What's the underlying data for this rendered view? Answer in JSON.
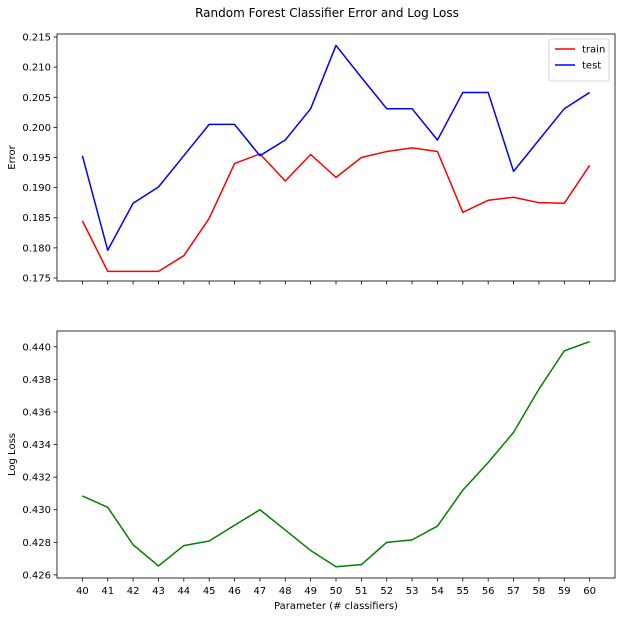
{
  "figure": {
    "title": "Random Forest Classifier Error and Log Loss"
  },
  "chart_data": [
    {
      "type": "line",
      "ylabel": "Error",
      "xlabel": "",
      "x": [
        40,
        41,
        42,
        43,
        44,
        45,
        46,
        47,
        48,
        49,
        50,
        51,
        52,
        53,
        54,
        55,
        56,
        57,
        58,
        59,
        60
      ],
      "ylim": [
        0.1745,
        0.2155
      ],
      "yticks": [
        0.175,
        0.18,
        0.185,
        0.19,
        0.195,
        0.2,
        0.205,
        0.21,
        0.215
      ],
      "ytick_labels": [
        "0.175",
        "0.180",
        "0.185",
        "0.190",
        "0.195",
        "0.200",
        "0.205",
        "0.210",
        "0.215"
      ],
      "show_xtick_labels": false,
      "grid": false,
      "legend": "top-right",
      "series": [
        {
          "name": "train",
          "color": "#ff0000",
          "values": [
            0.1845,
            0.1761,
            0.1761,
            0.1761,
            0.1787,
            0.1849,
            0.194,
            0.1956,
            0.1911,
            0.1955,
            0.1917,
            0.195,
            0.196,
            0.1966,
            0.196,
            0.1859,
            0.1879,
            0.1884,
            0.1875,
            0.1874,
            0.1937
          ]
        },
        {
          "name": "test",
          "color": "#0000ff",
          "values": [
            0.1953,
            0.1796,
            0.1874,
            0.1901,
            0.1953,
            0.2005,
            0.2005,
            0.1953,
            0.1979,
            0.2031,
            0.2136,
            0.2083,
            0.2031,
            0.2031,
            0.1979,
            0.2058,
            0.2058,
            0.1927,
            0.1979,
            0.2031,
            0.2058
          ]
        }
      ]
    },
    {
      "type": "line",
      "ylabel": "Log Loss",
      "xlabel": "Parameter (# classifiers)",
      "x": [
        40,
        41,
        42,
        43,
        44,
        45,
        46,
        47,
        48,
        49,
        50,
        51,
        52,
        53,
        54,
        55,
        56,
        57,
        58,
        59,
        60
      ],
      "ylim": [
        0.42581,
        0.44097
      ],
      "yticks": [
        0.426,
        0.428,
        0.43,
        0.432,
        0.434,
        0.436,
        0.438,
        0.44
      ],
      "ytick_labels": [
        "0.426",
        "0.428",
        "0.430",
        "0.432",
        "0.434",
        "0.436",
        "0.438",
        "0.440"
      ],
      "xtick_labels": [
        "40",
        "41",
        "42",
        "43",
        "44",
        "45",
        "46",
        "47",
        "48",
        "49",
        "50",
        "51",
        "52",
        "53",
        "54",
        "55",
        "56",
        "57",
        "58",
        "59",
        "60"
      ],
      "show_xtick_labels": true,
      "grid": false,
      "series": [
        {
          "color": "#008000",
          "values": [
            0.43085,
            0.43015,
            0.42785,
            0.42655,
            0.4278,
            0.42808,
            0.42905,
            0.43,
            0.42875,
            0.4275,
            0.4265,
            0.42663,
            0.428,
            0.42815,
            0.429,
            0.4312,
            0.4329,
            0.43475,
            0.4374,
            0.43975,
            0.44032
          ]
        }
      ]
    }
  ]
}
